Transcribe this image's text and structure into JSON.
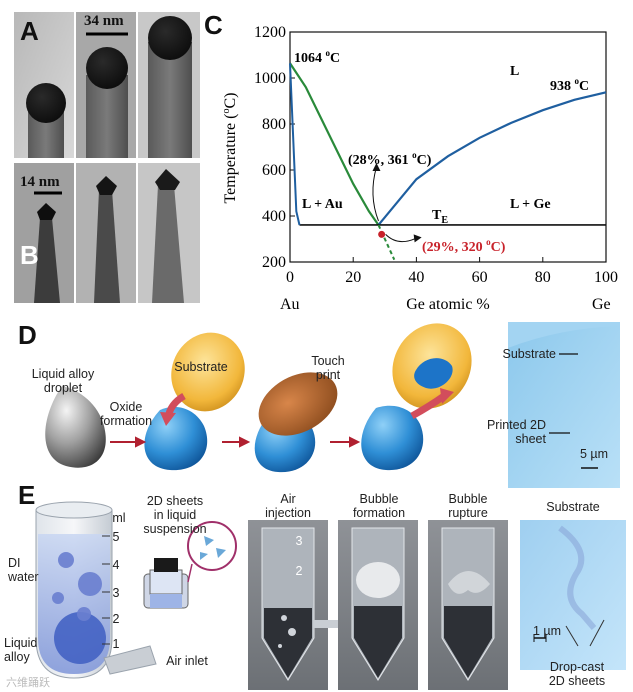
{
  "panels": {
    "a": "A",
    "b": "B",
    "c": "C",
    "d": "D",
    "e": "E"
  },
  "tem": {
    "scale_a": "34 nm",
    "scale_b": "14 nm"
  },
  "phase": {
    "ylabel": "Temperature (",
    "ylabel_unit": "C)",
    "ylabel_sup": "o",
    "xlabel": "Ge atomic %",
    "x_left": "Au",
    "x_right": "Ge",
    "y_ticks": [
      "200",
      "400",
      "600",
      "800",
      "1000",
      "1200"
    ],
    "x_ticks": [
      "0",
      "20",
      "40",
      "60",
      "80",
      "100"
    ],
    "au_melt": "1064 ",
    "ge_melt": "938 ",
    "deg_sup": "o",
    "deg_c": "C",
    "region_L": "L",
    "region_L_Au": "L + Au",
    "region_L_Ge": "L + Ge",
    "te_main": "T",
    "te_sub": "E",
    "eutectic_label": "(28%, 361 ",
    "eutectic_close": "C)",
    "metastable_label": "(29%, 320 ",
    "metastable_close": "C)",
    "colors": {
      "liquidus_au": "#2a8a3a",
      "liquidus_ge": "#1f5fa0",
      "metastable": "#c8222a"
    }
  },
  "chart_data": {
    "type": "line",
    "title": "",
    "xlabel": "Ge atomic %",
    "ylabel": "Temperature (oC)",
    "xlim": [
      0,
      100
    ],
    "ylim": [
      200,
      1200
    ],
    "series": [
      {
        "name": "Au-side liquidus",
        "x": [
          0,
          5,
          10,
          15,
          20,
          25,
          28
        ],
        "y": [
          1064,
          960,
          820,
          680,
          540,
          420,
          361
        ]
      },
      {
        "name": "Ge-side liquidus",
        "x": [
          28,
          40,
          50,
          60,
          70,
          80,
          90,
          100
        ],
        "y": [
          361,
          560,
          660,
          740,
          805,
          860,
          905,
          938
        ]
      },
      {
        "name": "Eutectic",
        "x": [
          3,
          100
        ],
        "y": [
          361,
          361
        ]
      },
      {
        "name": "Au solidus",
        "x": [
          0,
          2,
          3
        ],
        "y": [
          1064,
          420,
          361
        ]
      },
      {
        "name": "Metastable extension",
        "x": [
          28,
          33
        ],
        "y": [
          361,
          210
        ]
      }
    ],
    "points": [
      {
        "label": "(28%, 361 oC)",
        "x": 28,
        "y": 361
      },
      {
        "label": "(29%, 320 oC)",
        "x": 29,
        "y": 320
      }
    ]
  },
  "d": {
    "droplet": "Liquid alloy\ndroplet",
    "oxide": "Oxide\nformation",
    "substrate_disc": "Substrate",
    "touch": "Touch\nprint",
    "micro_substrate": "Substrate",
    "micro_printed": "Printed 2D\nsheet",
    "micro_scale": "5 µm"
  },
  "e": {
    "ml": "ml",
    "tube_ticks": [
      "5",
      "4",
      "3",
      "2",
      "1"
    ],
    "di_water": "DI\nwater",
    "liquid_alloy": "Liquid\nalloy",
    "sheets": "2D sheets\nin liquid\nsuspension",
    "air_inlet": "Air inlet",
    "air_injection": "Air\ninjection",
    "bubble_formation": "Bubble\nformation",
    "bubble_rupture": "Bubble\nrupture",
    "micro_substrate": "Substrate",
    "micro_scale": "1 µm",
    "drop_cast": "Drop-cast\n2D sheets",
    "photo_ticks": [
      "3",
      "2"
    ]
  },
  "watermark": "六维踊跃"
}
